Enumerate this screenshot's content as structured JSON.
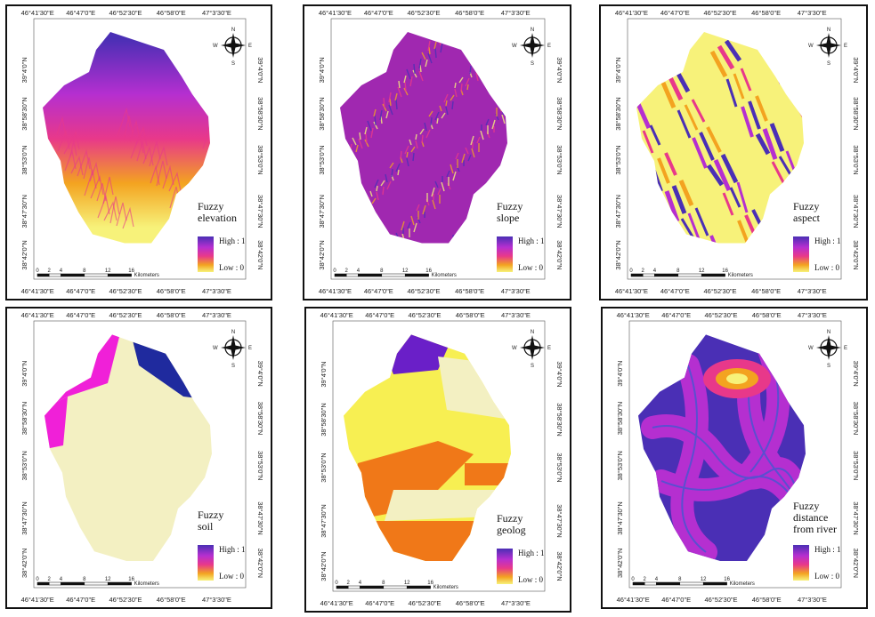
{
  "lon_labels": [
    "46°41'30\"E",
    "46°47'0\"E",
    "46°52'30\"E",
    "46°58'0\"E",
    "47°3'30\"E"
  ],
  "lat_labels": [
    "38°42'0\"N",
    "38°47'30\"N",
    "38°53'0\"N",
    "38°58'30\"N",
    "39°4'0\"N"
  ],
  "compass": {
    "n": "N",
    "s": "S",
    "e": "E",
    "w": "W"
  },
  "scale": {
    "ticks": [
      "0",
      "2",
      "4",
      "8",
      "12",
      "16"
    ],
    "unit": "Kilometers"
  },
  "legend": {
    "high": "High : 1",
    "low": "Low : 0"
  },
  "panels": [
    {
      "title_lines": [
        "Fuzzy",
        "elevation"
      ]
    },
    {
      "title_lines": [
        "Fuzzy",
        "slope"
      ]
    },
    {
      "title_lines": [
        "Fuzzy",
        "aspect"
      ]
    },
    {
      "title_lines": [
        "Fuzzy",
        "soil"
      ]
    },
    {
      "title_lines": [
        "Fuzzy",
        "geolog"
      ]
    },
    {
      "title_lines": [
        "Fuzzy",
        "distance",
        "from river"
      ]
    }
  ],
  "colors": {
    "high": "#4a2fb5",
    "mid_high": "#b52fd0",
    "mid": "#e8388a",
    "mid_low": "#f3a320",
    "low": "#f7f27a",
    "soil_pale": "#f3f0c2",
    "soil_magenta": "#f020d8",
    "soil_blue": "#1f2a9e",
    "geo_orange": "#f07818",
    "geo_yellow": "#f7ef52",
    "geo_purple": "#6a1fc8"
  }
}
